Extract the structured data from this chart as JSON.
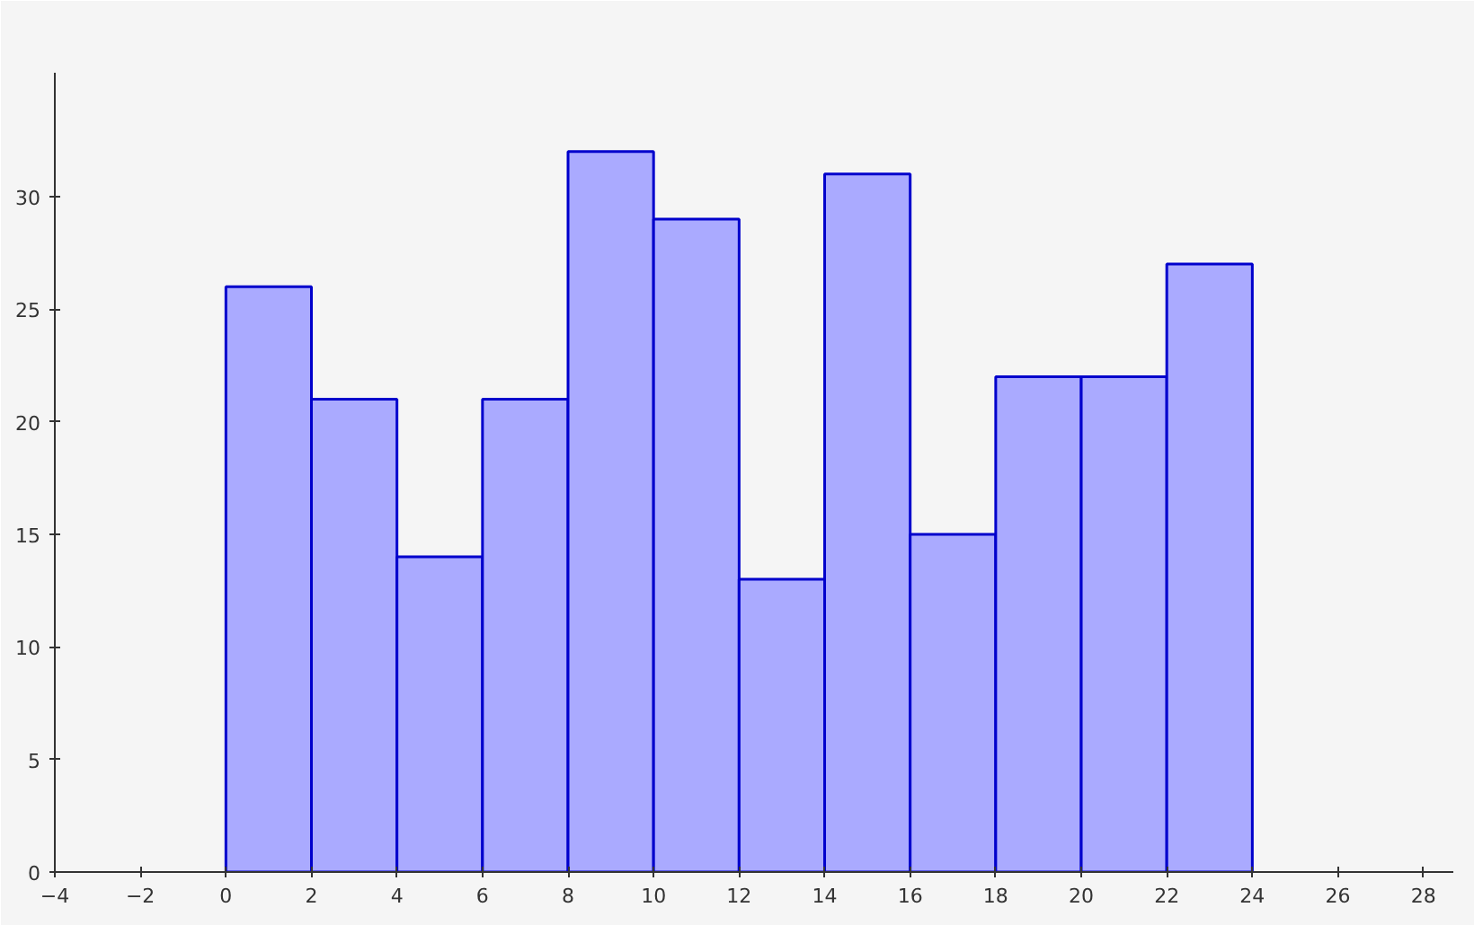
{
  "chart_data": {
    "type": "histogram",
    "bins": [
      0,
      2,
      4,
      6,
      8,
      10,
      12,
      14,
      16,
      18,
      20,
      22,
      24
    ],
    "values": [
      26,
      21,
      14,
      21,
      32,
      29,
      13,
      31,
      15,
      22,
      22,
      27
    ],
    "color": "#aaaaff",
    "xlim": [
      -4,
      28.7
    ],
    "ylim": [
      0,
      35.5
    ],
    "xticks": [
      {
        "value": -4,
        "label": "−4"
      },
      {
        "value": -2,
        "label": "−2"
      },
      0,
      2,
      4,
      6,
      8,
      10,
      12,
      14,
      16,
      18,
      20,
      22,
      24,
      26,
      28
    ],
    "yticks": [
      0,
      5,
      10,
      15,
      20,
      25,
      30
    ],
    "grid": false
  }
}
